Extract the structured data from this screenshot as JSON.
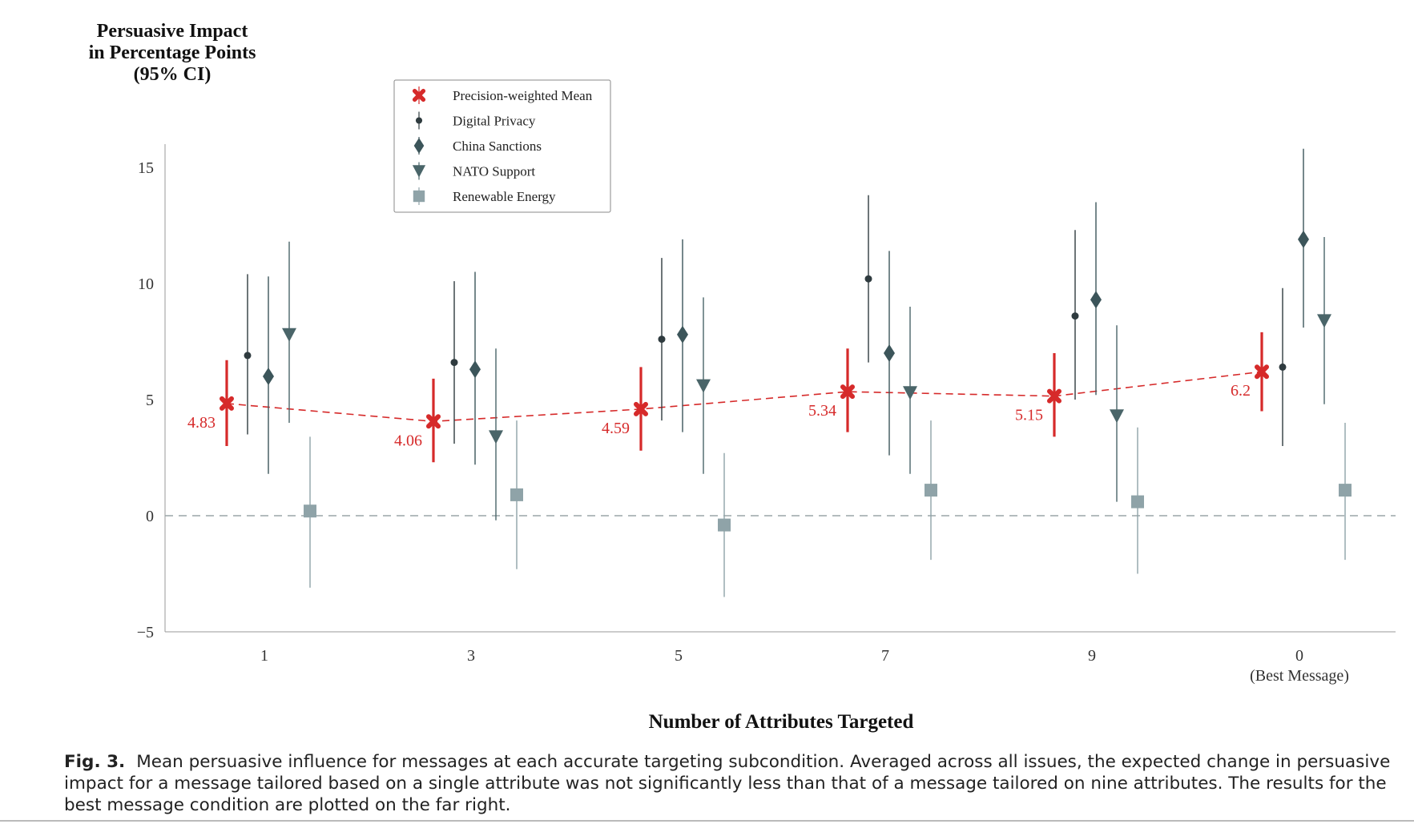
{
  "chart_data": {
    "type": "scatter",
    "subtype": "dot-and-whisker",
    "title": "",
    "ylabel_lines": [
      "Persuasive Impact",
      "in Percentage Points",
      "(95% CI)"
    ],
    "xlabel": "Number of Attributes Targeted",
    "ylim": [
      -5,
      16
    ],
    "yticks": [
      -5,
      0,
      5,
      10,
      15
    ],
    "ytick_labels": [
      "−5",
      "0",
      "5",
      "10",
      "15"
    ],
    "reference_line_y": 0,
    "categories": [
      "1",
      "3",
      "5",
      "7",
      "9",
      "0"
    ],
    "category_sublabels": [
      "",
      "",
      "",
      "",
      "",
      "(Best Message)"
    ],
    "legend_placement": "top-center",
    "series": [
      {
        "name": "Precision-weighted Mean",
        "key": "mean",
        "marker": "cross",
        "color": "#d62a2a",
        "values": [
          4.83,
          4.06,
          4.59,
          5.34,
          5.15,
          6.2
        ],
        "lower": [
          3.0,
          2.3,
          2.8,
          3.6,
          3.4,
          4.5
        ],
        "upper": [
          6.7,
          5.9,
          6.4,
          7.2,
          7.0,
          7.9
        ],
        "value_labels": [
          "4.83",
          "4.06",
          "4.59",
          "5.34",
          "5.15",
          "6.2"
        ]
      },
      {
        "name": "Digital Privacy",
        "key": "privacy",
        "marker": "circle",
        "color": "#2f3b3f",
        "values": [
          6.9,
          6.6,
          7.6,
          10.2,
          8.6,
          6.4
        ],
        "lower": [
          3.5,
          3.1,
          4.1,
          6.6,
          5.0,
          3.0
        ],
        "upper": [
          10.4,
          10.1,
          11.1,
          13.8,
          12.3,
          9.8
        ]
      },
      {
        "name": "China Sanctions",
        "key": "china",
        "marker": "diamond",
        "color": "#3c555a",
        "values": [
          6.0,
          6.3,
          7.8,
          7.0,
          9.3,
          11.9
        ],
        "lower": [
          1.8,
          2.2,
          3.6,
          2.6,
          5.2,
          8.1
        ],
        "upper": [
          10.3,
          10.5,
          11.9,
          11.4,
          13.5,
          15.8
        ]
      },
      {
        "name": "NATO Support",
        "key": "nato",
        "marker": "triangle-down",
        "color": "#4a6569",
        "values": [
          7.8,
          3.4,
          5.6,
          5.3,
          4.3,
          8.4
        ],
        "lower": [
          4.0,
          -0.2,
          1.8,
          1.8,
          0.6,
          4.8
        ],
        "upper": [
          11.8,
          7.2,
          9.4,
          9.0,
          8.2,
          12.0
        ],
        "value_labels": []
      },
      {
        "name": "Renewable Energy",
        "key": "energy",
        "marker": "square",
        "color": "#8fa3a8",
        "values": [
          0.2,
          0.9,
          -0.4,
          1.1,
          0.6,
          1.1
        ],
        "lower": [
          -3.1,
          -2.3,
          -3.5,
          -1.9,
          -2.5,
          -1.9
        ],
        "upper": [
          3.4,
          4.1,
          2.7,
          4.1,
          3.8,
          4.0
        ]
      }
    ]
  },
  "caption": {
    "label": "Fig. 3.",
    "text": "Mean persuasive influence for messages at each accurate targeting subcondition. Averaged across all issues, the expected change in persuasive impact for a message tailored based on a single attribute was not significantly less than that of a message tailored on nine attributes. The results for the best message condition are plotted on the far right."
  }
}
